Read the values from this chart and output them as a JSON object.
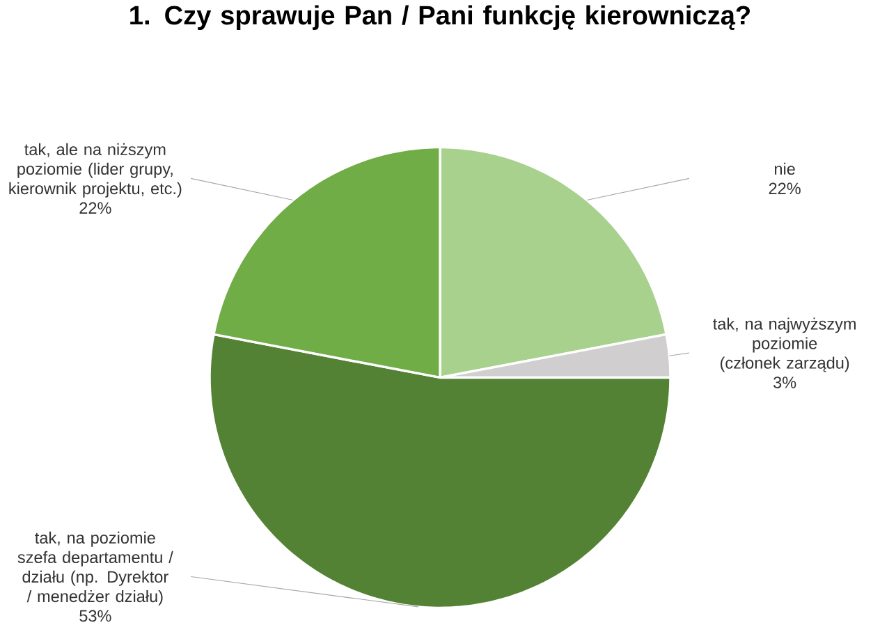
{
  "chart_data": {
    "type": "pie",
    "title": "1. Czy sprawuje Pan / Pani funkcję kierowniczą?",
    "categories": [
      "nie",
      "tak, na najwyższym poziomie (członek zarządu)",
      "tak, na poziomie szefa departamentu / działu (np. Dyrektor / menedżer działu)",
      "tak, ale na niższym poziomie (lider grupy, kierownik projektu, etc.)"
    ],
    "values": [
      22,
      3,
      53,
      22
    ],
    "value_labels": [
      "22%",
      "3%",
      "53%",
      "22%"
    ],
    "colors": [
      "#a9d18e",
      "#d0cece",
      "#548235",
      "#70ad47"
    ]
  }
}
